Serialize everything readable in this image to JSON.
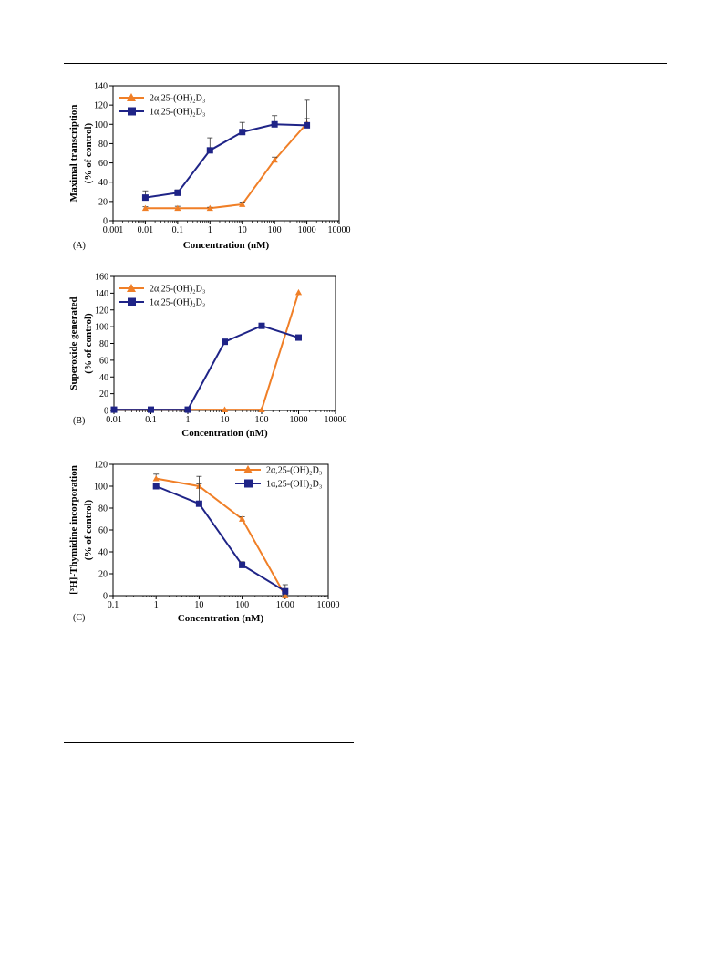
{
  "page": {
    "rule_color": "#000000"
  },
  "colors": {
    "analog": "#F07F27",
    "calcitriol": "#1F2487"
  },
  "chart_data": [
    {
      "id": "A",
      "type": "line",
      "panel_label": "(A)",
      "xlabel": "Concentration (nM)",
      "ylabel": [
        "Maximal transcription",
        "(% of control)"
      ],
      "xscale": "log",
      "xlim": [
        0.001,
        10000
      ],
      "xticks": [
        0.001,
        0.01,
        0.1,
        1,
        10,
        100,
        1000,
        10000
      ],
      "xticklabels": [
        "0.001",
        "0.01",
        "0.1",
        "1",
        "10",
        "100",
        "1000",
        "10000"
      ],
      "ylim": [
        0,
        140
      ],
      "yticks": [
        0,
        20,
        40,
        60,
        80,
        100,
        120,
        140
      ],
      "yticklabels": [
        "0",
        "20",
        "40",
        "60",
        "80",
        "100",
        "120",
        "140"
      ],
      "legend_position": "top-left",
      "series": [
        {
          "name": "2α,25-(OH)₂D₃",
          "color": "#F07F27",
          "marker": "triangle",
          "x": [
            0.01,
            0.1,
            1,
            10,
            100,
            1000
          ],
          "y": [
            13,
            13,
            13,
            17,
            63,
            101
          ],
          "err": [
            1.5,
            2,
            1,
            2.5,
            3,
            5
          ]
        },
        {
          "name": "1α,25-(OH)₂D₃",
          "color": "#1F2487",
          "marker": "square",
          "x": [
            0.01,
            0.1,
            1,
            10,
            100,
            1000
          ],
          "y": [
            24,
            29,
            73,
            92,
            100,
            99
          ],
          "err": [
            7,
            3,
            13,
            10,
            9,
            26
          ]
        }
      ]
    },
    {
      "id": "B",
      "type": "line",
      "panel_label": "(B)",
      "xlabel": "Concentration (nM)",
      "ylabel": [
        "Superoxide generated",
        "(% of control)"
      ],
      "xscale": "log",
      "xlim": [
        0.01,
        10000
      ],
      "xticks": [
        0.01,
        0.1,
        1,
        10,
        100,
        1000,
        10000
      ],
      "xticklabels": [
        "0.01",
        "0.1",
        "1",
        "10",
        "100",
        "1000",
        "10000"
      ],
      "ylim": [
        0,
        160
      ],
      "yticks": [
        0,
        20,
        40,
        60,
        80,
        100,
        120,
        140,
        160
      ],
      "yticklabels": [
        "0",
        "20",
        "40",
        "60",
        "80",
        "100",
        "120",
        "140",
        "160"
      ],
      "legend_position": "top-left",
      "series": [
        {
          "name": "2α,25-(OH)₂D₃",
          "color": "#F07F27",
          "marker": "triangle",
          "x": [
            0.01,
            0.1,
            1,
            10,
            100,
            1000
          ],
          "y": [
            1,
            1,
            1,
            1,
            1,
            141
          ],
          "err": [
            0,
            0,
            0,
            0,
            0,
            0
          ]
        },
        {
          "name": "1α,25-(OH)₂D₃",
          "color": "#1F2487",
          "marker": "square",
          "x": [
            0.01,
            0.1,
            1,
            10,
            100,
            1000
          ],
          "y": [
            1,
            1,
            1,
            82,
            101,
            87
          ],
          "err": [
            0,
            0,
            0,
            0,
            0,
            0
          ]
        }
      ]
    },
    {
      "id": "C",
      "type": "line",
      "panel_label": "(C)",
      "xlabel": "Concentration (nM)",
      "ylabel": [
        "[³H]-Thymidine incorporation",
        "(% of control)"
      ],
      "xscale": "log",
      "xlim": [
        0.1,
        10000
      ],
      "xticks": [
        0.1,
        1,
        10,
        100,
        1000,
        10000
      ],
      "xticklabels": [
        "0.1",
        "1",
        "10",
        "100",
        "1000",
        "10000"
      ],
      "ylim": [
        0,
        120
      ],
      "yticks": [
        0,
        20,
        40,
        60,
        80,
        100,
        120
      ],
      "yticklabels": [
        "0",
        "20",
        "40",
        "60",
        "80",
        "100",
        "120"
      ],
      "legend_position": "top-right",
      "series": [
        {
          "name": "2α,25-(OH)₂D₃",
          "color": "#F07F27",
          "marker": "triangle",
          "x": [
            1,
            10,
            100,
            1000
          ],
          "y": [
            107,
            100,
            70,
            0
          ],
          "err": [
            4,
            2,
            2,
            1
          ]
        },
        {
          "name": "1α,25-(OH)₂D₃",
          "color": "#1F2487",
          "marker": "square",
          "x": [
            1,
            10,
            100,
            1000
          ],
          "y": [
            100,
            84,
            28,
            4
          ],
          "err": [
            2,
            25,
            3,
            6
          ]
        }
      ]
    }
  ]
}
